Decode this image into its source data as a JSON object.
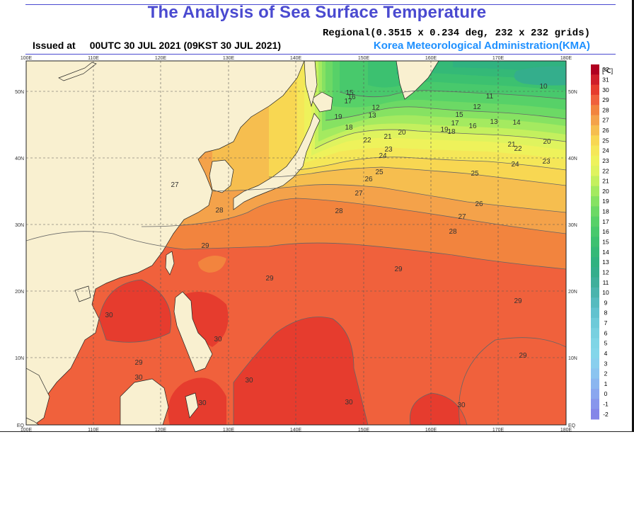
{
  "map": {
    "title": "The Analysis of Sea Surface Temperature",
    "regional": "Regional(0.3515 x 0.234 deg, 232 x 232 grids)",
    "issued_label": "Issued at",
    "issued_time": "00UTC 30 JUL 2021 (09KST 30 JUL 2021)",
    "agency": "Korea Meteorological Administration(KMA)",
    "unit": "[℃]",
    "longitude_labels": [
      "100E",
      "110E",
      "120E",
      "130E",
      "140E",
      "150E",
      "160E",
      "170E",
      "180E"
    ],
    "latitude_labels": [
      "EQ",
      "10N",
      "20N",
      "30N",
      "40N",
      "50N"
    ],
    "colorbar": {
      "values": [
        "32",
        "31",
        "30",
        "29",
        "28",
        "27",
        "26",
        "25",
        "24",
        "23",
        "22",
        "21",
        "20",
        "19",
        "18",
        "17",
        "16",
        "15",
        "14",
        "13",
        "12",
        "11",
        "10",
        "9",
        "8",
        "7",
        "6",
        "5",
        "4",
        "3",
        "2",
        "1",
        "0",
        "-1",
        "-2"
      ],
      "colors": [
        "#b00020",
        "#cf1e2a",
        "#e63c2e",
        "#f0613c",
        "#f2843e",
        "#f4a24a",
        "#f6be4f",
        "#f8d752",
        "#f5e758",
        "#eef25b",
        "#dff35e",
        "#c4f05e",
        "#a4ea60",
        "#86e262",
        "#6cd965",
        "#57d168",
        "#48c96c",
        "#3cc170",
        "#34b977",
        "#30b280",
        "#34ae8c",
        "#3eaf9b",
        "#4ab4ad",
        "#56bbbf",
        "#62c2cf",
        "#6ecad9",
        "#78d0e0",
        "#7fd5e6",
        "#84d6ea",
        "#89cfee",
        "#8bc4f0",
        "#8bb6f0",
        "#8aa7ef",
        "#8896ec",
        "#8485e8"
      ]
    },
    "colors": {
      "land": "#f9f0d0",
      "title": "#4a4ad0",
      "agency": "#1e90ff",
      "grid": "#555555"
    },
    "contour_labels": [
      {
        "text": "10"
      },
      {
        "text": "11"
      },
      {
        "text": "12"
      },
      {
        "text": "13"
      },
      {
        "text": "14"
      },
      {
        "text": "15"
      },
      {
        "text": "16"
      },
      {
        "text": "17"
      },
      {
        "text": "18"
      },
      {
        "text": "19"
      },
      {
        "text": "20"
      },
      {
        "text": "21"
      },
      {
        "text": "22"
      },
      {
        "text": "23"
      },
      {
        "text": "24"
      },
      {
        "text": "25"
      },
      {
        "text": "26"
      },
      {
        "text": "27"
      },
      {
        "text": "28"
      },
      {
        "text": "29"
      },
      {
        "text": "30"
      }
    ]
  }
}
